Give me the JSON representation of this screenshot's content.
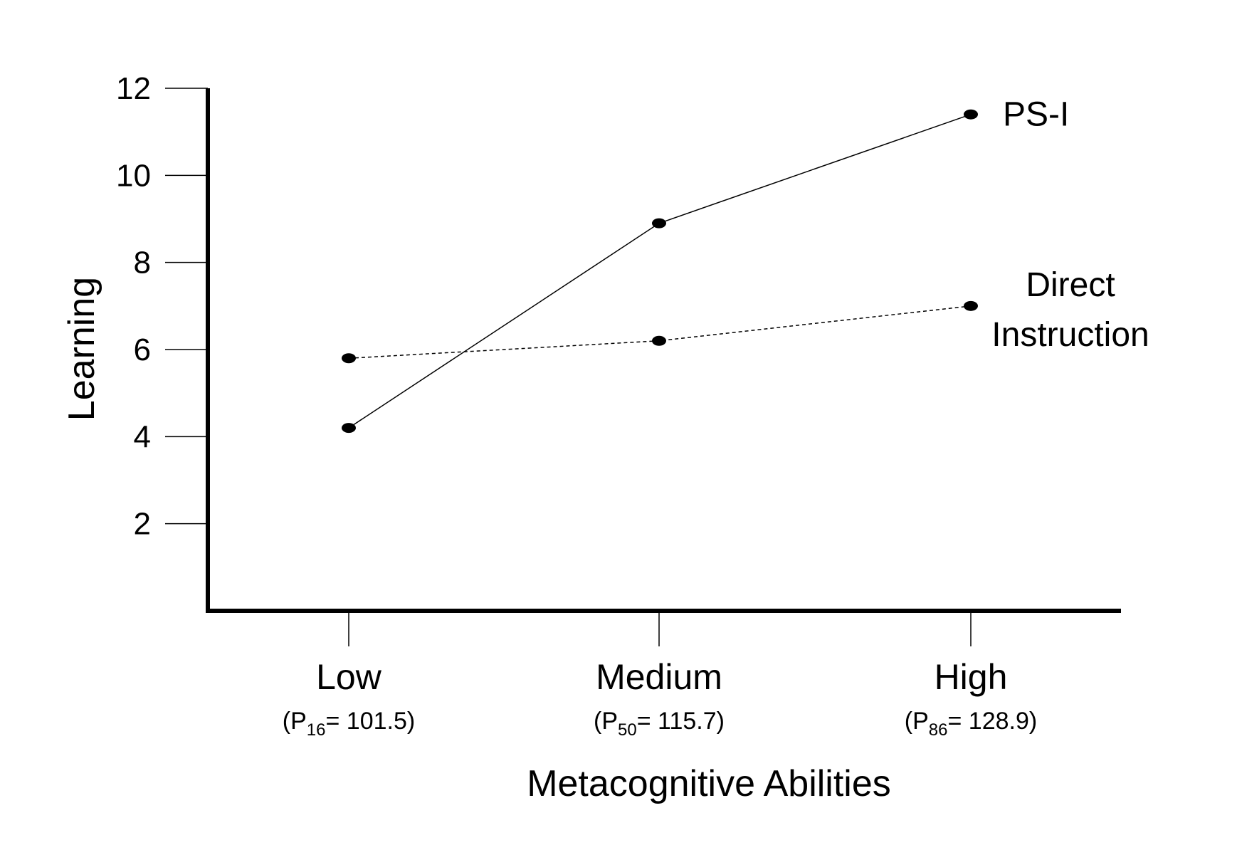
{
  "chart_data": {
    "type": "line",
    "title": "",
    "xlabel": "Metacognitive Abilities",
    "ylabel": "Learning",
    "ylim": [
      0,
      12
    ],
    "yticks": [
      2,
      4,
      6,
      8,
      10,
      12
    ],
    "grid": false,
    "legend": "none (series labels placed at right end of each line)",
    "categories": [
      {
        "label": "Low",
        "percentile": "16",
        "value": "101.5"
      },
      {
        "label": "Medium",
        "percentile": "50",
        "value": "115.7"
      },
      {
        "label": "High",
        "percentile": "86",
        "value": "128.9"
      }
    ],
    "series": [
      {
        "name": "PS-I",
        "label_lines": [
          "PS-I"
        ],
        "line_style": "solid",
        "values": [
          4.2,
          8.9,
          11.4
        ]
      },
      {
        "name": "Direct Instruction",
        "label_lines": [
          "Direct",
          "Instruction"
        ],
        "line_style": "dashed",
        "values": [
          5.8,
          6.2,
          7.0
        ]
      }
    ]
  }
}
